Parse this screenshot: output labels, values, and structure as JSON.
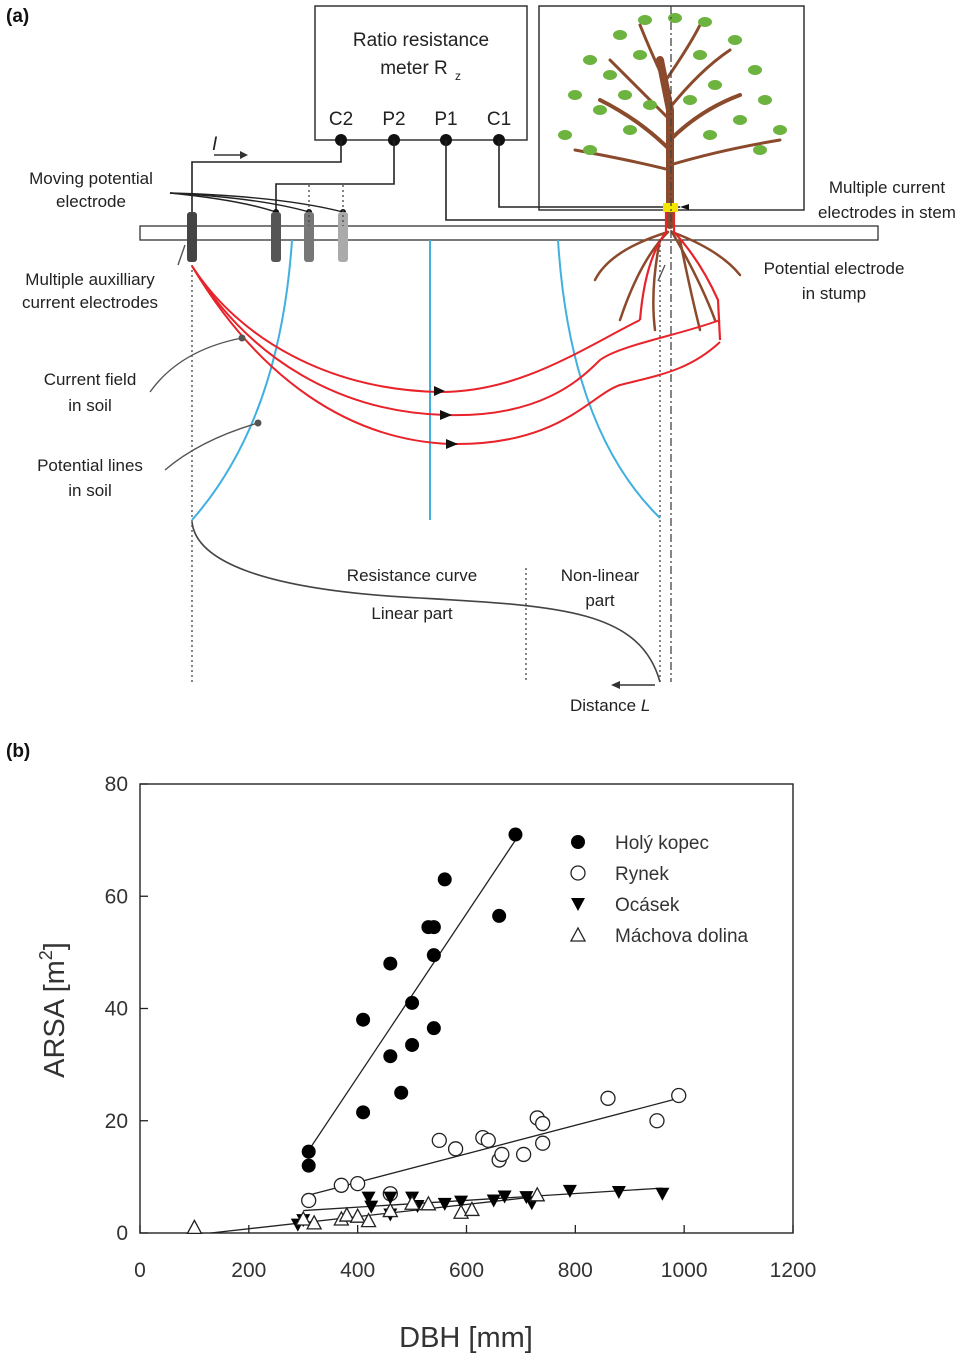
{
  "panel_a": {
    "panel_label": "(a)",
    "meter_label_line1": "Ratio resistance",
    "meter_label_line2": "meter R",
    "meter_label_sub": "z",
    "terminals": [
      "C2",
      "P2",
      "P1",
      "C1"
    ],
    "current_symbol": "I",
    "labels": {
      "moving_potential_1": "Moving potential",
      "moving_potential_2": "electrode",
      "multiple_current_stem_1": "Multiple current",
      "multiple_current_stem_2": "electrodes in stem",
      "aux_current_1": "Multiple auxilliary",
      "aux_current_2": "current electrodes",
      "potential_stump_1": "Potential electrode",
      "potential_stump_2": "in stump",
      "current_field_1": "Current field",
      "current_field_2": "in soil",
      "potential_lines_1": "Potential lines",
      "potential_lines_2": "in soil",
      "resistance_curve": "Resistance curve",
      "linear_part": "Linear part",
      "nonlinear_1": "Non-linear",
      "nonlinear_2": "part",
      "distance": "Distance ",
      "distance_var": "L"
    },
    "colors": {
      "current": "#e8232a",
      "potential": "#3fb0e0",
      "root": "#8b4a2b",
      "leaf": "#6cb33f",
      "electrode_yellow": "#f5e600"
    }
  },
  "panel_b": {
    "panel_label": "(b)",
    "chart_data": {
      "type": "scatter",
      "xlabel": "DBH [mm]",
      "ylabel_main": "ARSA  [m",
      "ylabel_sup": "2",
      "ylabel_end": "]",
      "xlim": [
        0,
        1200
      ],
      "ylim": [
        0,
        80
      ],
      "xticks": [
        0,
        200,
        400,
        600,
        800,
        1000,
        1200
      ],
      "yticks": [
        0,
        20,
        40,
        60,
        80
      ],
      "legend_position": "top-right",
      "series": [
        {
          "name": "Holý kopec",
          "marker": "filled-circle",
          "points": [
            [
              310,
              14.5
            ],
            [
              310,
              12
            ],
            [
              410,
              38
            ],
            [
              410,
              21.5
            ],
            [
              460,
              48
            ],
            [
              460,
              31.5
            ],
            [
              480,
              25
            ],
            [
              500,
              41
            ],
            [
              500,
              33.5
            ],
            [
              530,
              54.5
            ],
            [
              540,
              54.5
            ],
            [
              540,
              49.5
            ],
            [
              540,
              36.5
            ],
            [
              560,
              63
            ],
            [
              660,
              56.5
            ],
            [
              690,
              71
            ]
          ],
          "fit": [
            [
              305,
              14
            ],
            [
              690,
              70
            ]
          ]
        },
        {
          "name": "Rynek",
          "marker": "open-circle",
          "points": [
            [
              310,
              5.8
            ],
            [
              370,
              8.5
            ],
            [
              400,
              8.8
            ],
            [
              460,
              7
            ],
            [
              550,
              16.5
            ],
            [
              580,
              15
            ],
            [
              630,
              17
            ],
            [
              640,
              16.5
            ],
            [
              660,
              13
            ],
            [
              665,
              14
            ],
            [
              705,
              14
            ],
            [
              730,
              20.5
            ],
            [
              740,
              19.5
            ],
            [
              740,
              16
            ],
            [
              860,
              24
            ],
            [
              950,
              20
            ],
            [
              990,
              24.5
            ]
          ],
          "fit": [
            [
              300,
              6.5
            ],
            [
              990,
              24
            ]
          ]
        },
        {
          "name": "Ocásek",
          "marker": "filled-triangle-down",
          "points": [
            [
              290,
              1.5
            ],
            [
              300,
              2.3
            ],
            [
              420,
              6.3
            ],
            [
              425,
              4.7
            ],
            [
              460,
              6.3
            ],
            [
              460,
              3.3
            ],
            [
              500,
              6.3
            ],
            [
              510,
              4.8
            ],
            [
              560,
              5.2
            ],
            [
              590,
              5.6
            ],
            [
              650,
              5.8
            ],
            [
              670,
              6.5
            ],
            [
              710,
              6.4
            ],
            [
              720,
              5.3
            ],
            [
              790,
              7.5
            ],
            [
              880,
              7.3
            ],
            [
              960,
              7
            ]
          ],
          "fit": [
            [
              300,
              4
            ],
            [
              960,
              8
            ]
          ]
        },
        {
          "name": "Máchova dolina",
          "marker": "open-triangle-up",
          "points": [
            [
              100,
              1
            ],
            [
              300,
              2.5
            ],
            [
              320,
              1.8
            ],
            [
              370,
              2.5
            ],
            [
              380,
              3.2
            ],
            [
              400,
              3
            ],
            [
              420,
              2.2
            ],
            [
              460,
              4
            ],
            [
              500,
              5.3
            ],
            [
              530,
              5.2
            ],
            [
              590,
              3.7
            ],
            [
              610,
              4.2
            ],
            [
              730,
              6.8
            ]
          ],
          "fit": [
            [
              130,
              0
            ],
            [
              730,
              6.5
            ]
          ]
        }
      ]
    }
  }
}
